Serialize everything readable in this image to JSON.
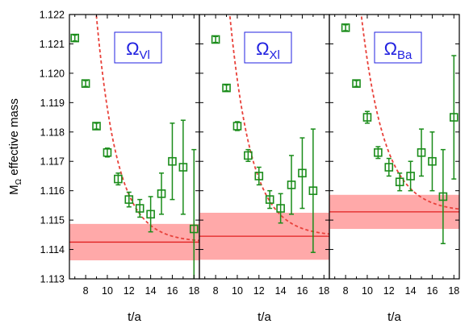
{
  "chart_data": {
    "type": "scatter",
    "ylabel": "MΩ effective mass",
    "ylabel_parts": {
      "main": "M",
      "sub": "Ω",
      "rest": " effective mass"
    },
    "ylim": [
      1.113,
      1.122
    ],
    "yticks": [
      "1.113",
      "1.114",
      "1.115",
      "1.116",
      "1.117",
      "1.118",
      "1.119",
      "1.120",
      "1.121",
      "1.122"
    ],
    "xticks": [
      "8",
      "10",
      "12",
      "14",
      "16",
      "18"
    ],
    "colors": {
      "points": "#1a8c1a",
      "fit_curve": "#e8413a",
      "band_fill": "#ff9a9a",
      "band_line": "#e02020",
      "label_text": "#2020e0",
      "label_border": "#2020e0"
    },
    "panels": [
      {
        "xlabel": "t/a",
        "label": {
          "main": "Ω",
          "sub": "Vl"
        },
        "xlim": [
          6.5,
          18.5
        ],
        "points": [
          {
            "x": 7,
            "y": 1.1212,
            "err": 0.0001
          },
          {
            "x": 8,
            "y": 1.11965,
            "err": 0.0001
          },
          {
            "x": 9,
            "y": 1.1182,
            "err": 0.0001
          },
          {
            "x": 10,
            "y": 1.1173,
            "err": 0.00015
          },
          {
            "x": 11,
            "y": 1.1164,
            "err": 0.0002
          },
          {
            "x": 12,
            "y": 1.1157,
            "err": 0.00025
          },
          {
            "x": 13,
            "y": 1.1154,
            "err": 0.0003
          },
          {
            "x": 14,
            "y": 1.1152,
            "err": 0.0006
          },
          {
            "x": 15,
            "y": 1.1159,
            "err": 0.0007
          },
          {
            "x": 16,
            "y": 1.117,
            "err": 0.0013
          },
          {
            "x": 17,
            "y": 1.1168,
            "err": 0.0016
          },
          {
            "x": 18,
            "y": 1.1147,
            "err": 0.0027
          }
        ],
        "fit": {
          "value": 1.11425,
          "err": 0.00062,
          "from": 6.5,
          "to": 18.5
        },
        "curve": {
          "A": 0.0217,
          "k": 0.52,
          "t0": 7,
          "from": 6.7,
          "to": 18.5
        }
      },
      {
        "xlabel": "t/a",
        "label": {
          "main": "Ω",
          "sub": "Xl"
        },
        "xlim": [
          6.5,
          18.5
        ],
        "points": [
          {
            "x": 8,
            "y": 1.12115,
            "err": 0.0001
          },
          {
            "x": 9,
            "y": 1.1195,
            "err": 0.0001
          },
          {
            "x": 10,
            "y": 1.1182,
            "err": 0.00015
          },
          {
            "x": 11,
            "y": 1.1172,
            "err": 0.0002
          },
          {
            "x": 12,
            "y": 1.1165,
            "err": 0.0003
          },
          {
            "x": 13,
            "y": 1.1157,
            "err": 0.0003
          },
          {
            "x": 14,
            "y": 1.1154,
            "err": 0.0005
          },
          {
            "x": 15,
            "y": 1.1162,
            "err": 0.001
          },
          {
            "x": 16,
            "y": 1.1166,
            "err": 0.0012
          },
          {
            "x": 17,
            "y": 1.116,
            "err": 0.0021
          }
        ],
        "fit": {
          "value": 1.11445,
          "err": 0.0008,
          "from": 6.5,
          "to": 18.5
        },
        "curve": {
          "A": 0.0239,
          "k": 0.5,
          "t0": 7,
          "from": 7.4,
          "to": 18.5
        }
      },
      {
        "xlabel": "t/a",
        "label": {
          "main": "Ω",
          "sub": "Ba"
        },
        "xlim": [
          6.5,
          18.5
        ],
        "points": [
          {
            "x": 8,
            "y": 1.12155,
            "err": 0.0001
          },
          {
            "x": 9,
            "y": 1.11965,
            "err": 0.0001
          },
          {
            "x": 10,
            "y": 1.1185,
            "err": 0.0002
          },
          {
            "x": 11,
            "y": 1.1173,
            "err": 0.0002
          },
          {
            "x": 12,
            "y": 1.1168,
            "err": 0.0003
          },
          {
            "x": 13,
            "y": 1.1163,
            "err": 0.0003
          },
          {
            "x": 14,
            "y": 1.1165,
            "err": 0.0005
          },
          {
            "x": 15,
            "y": 1.1173,
            "err": 0.0008
          },
          {
            "x": 16,
            "y": 1.117,
            "err": 0.001
          },
          {
            "x": 17,
            "y": 1.1158,
            "err": 0.0016
          },
          {
            "x": 18,
            "y": 1.1185,
            "err": 0.0021
          }
        ],
        "fit": {
          "value": 1.11528,
          "err": 0.00058,
          "from": 6.5,
          "to": 18.5
        },
        "curve": {
          "A": 0.0212,
          "k": 0.47,
          "t0": 7,
          "from": 7.2,
          "to": 18.5
        }
      }
    ]
  }
}
